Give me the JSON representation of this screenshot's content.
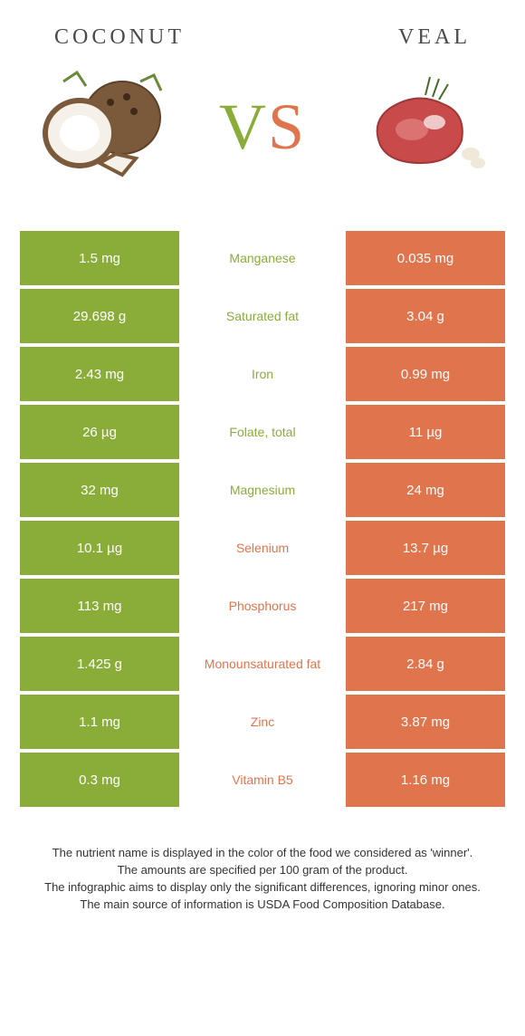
{
  "colors": {
    "coconut": "#8aad3a",
    "veal": "#e0744d",
    "vs_v": "#8aad3a",
    "vs_s": "#e0744d",
    "cell_text": "#ffffff",
    "footnote_text": "#333333"
  },
  "header": {
    "left": "COCONUT",
    "right": "VEAL"
  },
  "vs": {
    "v": "V",
    "s": "S"
  },
  "rows": [
    {
      "left": "1.5 mg",
      "mid": "Manganese",
      "right": "0.035 mg",
      "winner": "coconut"
    },
    {
      "left": "29.698 g",
      "mid": "Saturated fat",
      "right": "3.04 g",
      "winner": "coconut"
    },
    {
      "left": "2.43 mg",
      "mid": "Iron",
      "right": "0.99 mg",
      "winner": "coconut"
    },
    {
      "left": "26 µg",
      "mid": "Folate, total",
      "right": "11 µg",
      "winner": "coconut"
    },
    {
      "left": "32 mg",
      "mid": "Magnesium",
      "right": "24 mg",
      "winner": "coconut"
    },
    {
      "left": "10.1 µg",
      "mid": "Selenium",
      "right": "13.7 µg",
      "winner": "veal"
    },
    {
      "left": "113 mg",
      "mid": "Phosphorus",
      "right": "217 mg",
      "winner": "veal"
    },
    {
      "left": "1.425 g",
      "mid": "Monounsaturated fat",
      "right": "2.84 g",
      "winner": "veal"
    },
    {
      "left": "1.1 mg",
      "mid": "Zinc",
      "right": "3.87 mg",
      "winner": "veal"
    },
    {
      "left": "0.3 mg",
      "mid": "Vitamin B5",
      "right": "1.16 mg",
      "winner": "veal"
    }
  ],
  "footnotes": [
    "The nutrient name is displayed in the color of the food we considered as 'winner'.",
    "The amounts are specified per 100 gram of the product.",
    "The infographic aims to display only the significant differences, ignoring minor ones.",
    "The main source of information is USDA Food Composition Database."
  ]
}
